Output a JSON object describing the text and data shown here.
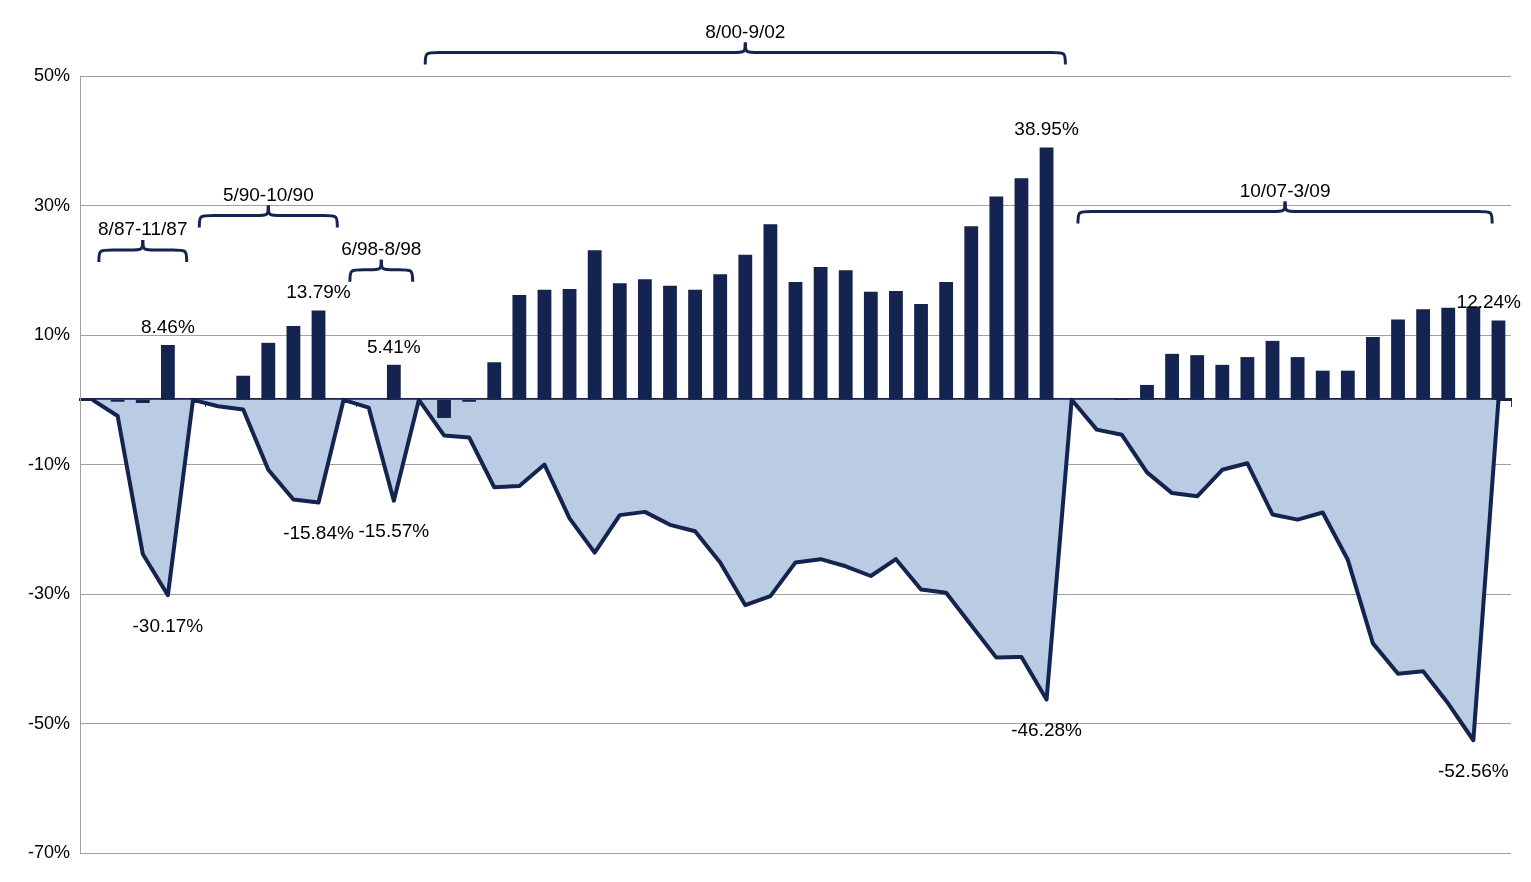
{
  "chart_data": {
    "type": "bar",
    "categories": [
      null,
      null,
      null,
      null,
      null,
      null,
      null,
      null,
      null,
      null,
      null,
      null,
      null,
      null,
      null,
      null,
      null,
      null,
      null,
      null,
      null,
      null,
      null,
      null,
      null,
      null,
      null,
      null,
      null,
      null,
      null,
      null,
      null,
      null,
      null,
      null,
      null,
      null,
      null,
      null,
      null,
      null,
      null,
      null,
      null,
      null,
      null,
      null,
      null,
      null,
      null,
      null,
      null,
      null,
      null,
      null,
      null
    ],
    "series": [
      {
        "color": "#14234f",
        "values": [
          0,
          -0.3,
          -0.5,
          8.46,
          0,
          0,
          3.7,
          8.8,
          11.4,
          13.79,
          0,
          0,
          5.41,
          0,
          -2.8,
          -0.3,
          5.8,
          16.2,
          17.0,
          17.1,
          23.1,
          18.0,
          18.6,
          17.6,
          17.0,
          19.4,
          22.4,
          27.1,
          18.2,
          20.5,
          20.0,
          16.7,
          16.8,
          14.8,
          18.2,
          26.8,
          31.4,
          34.2,
          38.95,
          0,
          0,
          0.2,
          2.3,
          7.1,
          6.9,
          5.4,
          6.6,
          9.1,
          6.6,
          4.5,
          4.5,
          9.7,
          12.4,
          14.0,
          14.2,
          14.4,
          12.24
        ],
        "value_labels": [
          null,
          null,
          null,
          "8.46%",
          null,
          null,
          null,
          null,
          null,
          "13.79%",
          null,
          null,
          "5.41%",
          null,
          null,
          null,
          null,
          null,
          null,
          null,
          null,
          null,
          null,
          null,
          null,
          null,
          null,
          null,
          null,
          null,
          null,
          null,
          null,
          null,
          null,
          null,
          null,
          null,
          "38.95%",
          null,
          null,
          null,
          null,
          null,
          null,
          null,
          null,
          null,
          null,
          null,
          null,
          null,
          null,
          null,
          null,
          null,
          "12.24%"
        ]
      },
      {
        "type": "area",
        "color": "#b9cce4",
        "values": [
          0,
          -2.5,
          -23.8,
          -30.17,
          0,
          -1.0,
          -1.5,
          -10.8,
          -15.4,
          -15.84,
          0,
          -1.2,
          -15.57,
          0,
          -5.5,
          -5.8,
          -13.5,
          -13.3,
          -10.0,
          -18.3,
          -23.6,
          -17.8,
          -17.3,
          -19.3,
          -20.3,
          -25.1,
          -31.7,
          -30.3,
          -25.1,
          -24.6,
          -25.7,
          -27.2,
          -24.6,
          -29.3,
          -29.8,
          -34.8,
          -39.8,
          -39.7,
          -46.28,
          0,
          -4.6,
          -5.4,
          -11.2,
          -14.4,
          -14.9,
          -10.8,
          -9.8,
          -17.7,
          -18.5,
          -17.4,
          -24.7,
          -37.6,
          -42.3,
          -41.9,
          -46.9,
          -52.56,
          0
        ],
        "value_labels": [
          null,
          null,
          null,
          "-30.17%",
          null,
          null,
          null,
          null,
          null,
          "-15.84%",
          null,
          null,
          "-15.57%",
          null,
          null,
          null,
          null,
          null,
          null,
          null,
          null,
          null,
          null,
          null,
          null,
          null,
          null,
          null,
          null,
          null,
          null,
          null,
          null,
          null,
          null,
          null,
          null,
          null,
          "-46.28%",
          null,
          null,
          null,
          null,
          null,
          null,
          null,
          null,
          null,
          null,
          null,
          null,
          null,
          null,
          null,
          null,
          "-52.56%",
          null
        ]
      }
    ],
    "ylim": [
      -70,
      50
    ],
    "yticks": [
      {
        "value": -70,
        "label": "-70%"
      },
      {
        "value": -50,
        "label": "-50%"
      },
      {
        "value": -30,
        "label": "-30%"
      },
      {
        "value": -10,
        "label": "-10%"
      },
      {
        "value": 10,
        "label": "10%"
      },
      {
        "value": 30,
        "label": "30%"
      },
      {
        "value": 50,
        "label": "50%"
      }
    ],
    "grid": "y",
    "tick_labels": "y",
    "annotations": [
      "8/87-11/87",
      "5/90-10/90",
      "6/98-8/98",
      "8/00-9/02",
      "10/07-3/09"
    ]
  }
}
